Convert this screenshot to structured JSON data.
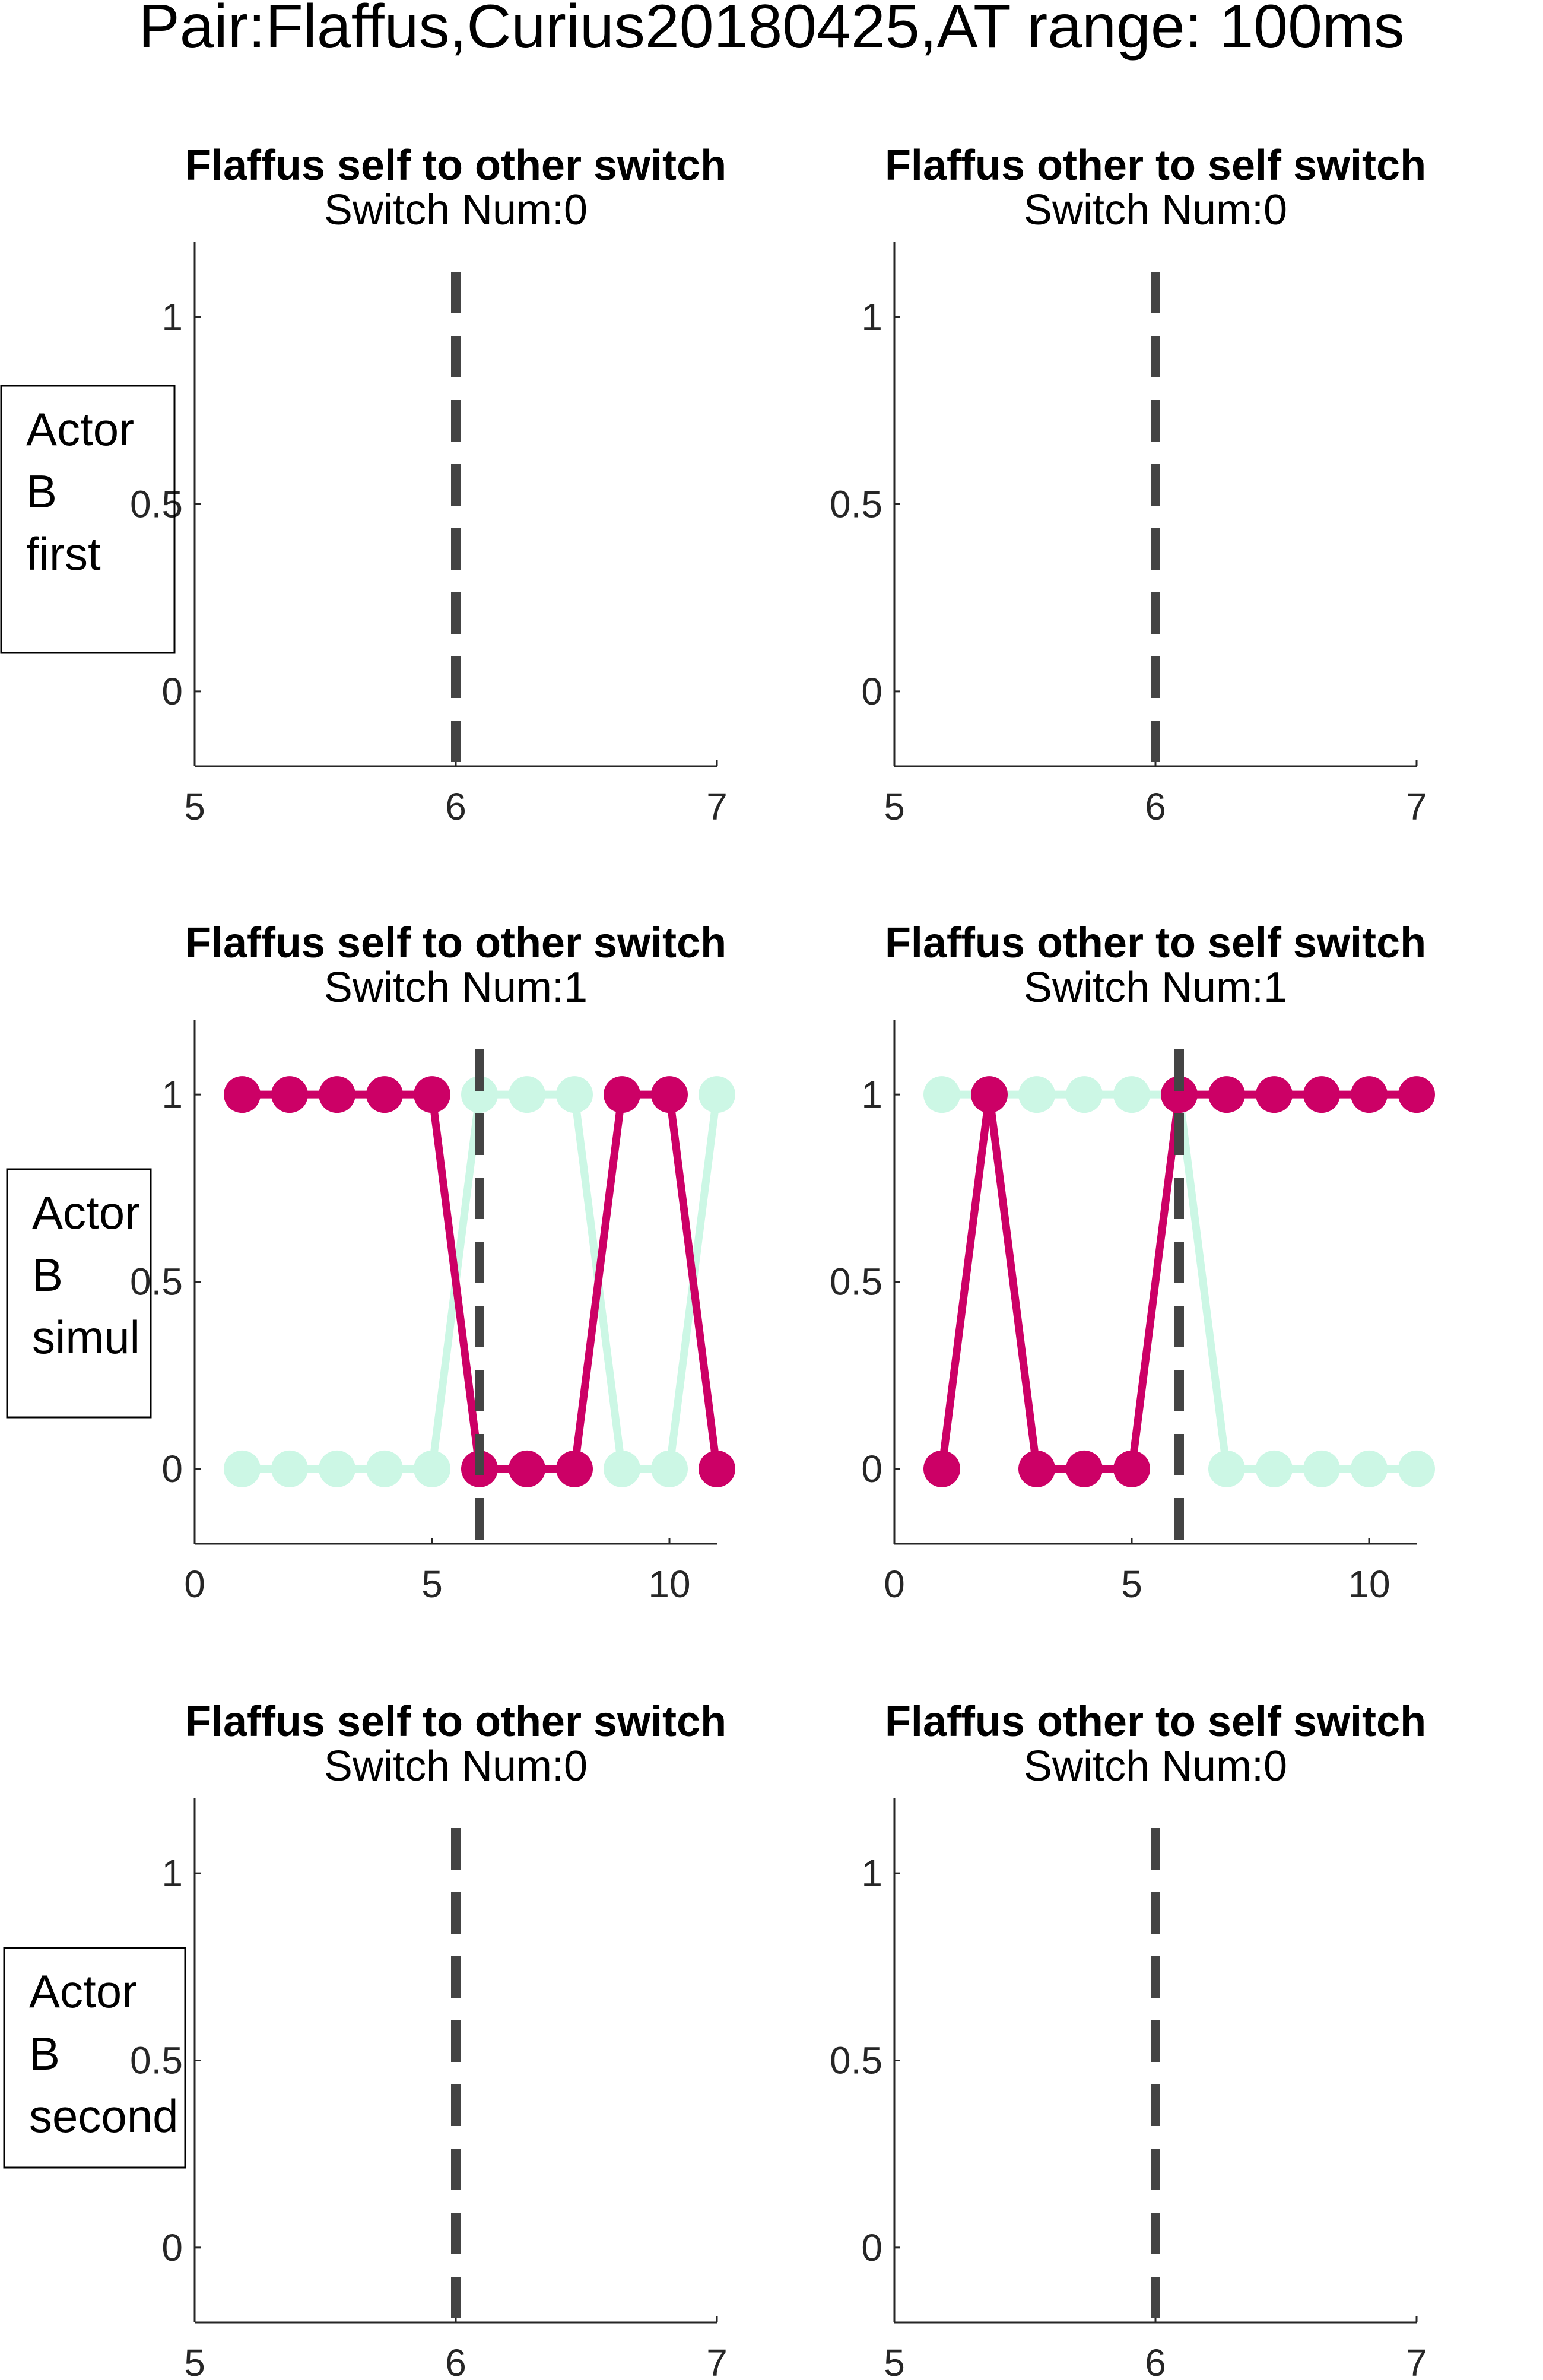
{
  "title": "Pair:Flaffus,Curius20180425,AT range: 100ms",
  "colors": {
    "magenta": "#cc0066",
    "mint": "#ccf7e5",
    "dashed_line": "#444444",
    "axis": "#262626"
  },
  "row_labels": [
    [
      "Actor",
      "B",
      "first"
    ],
    [
      "Actor",
      "B",
      "simul"
    ],
    [
      "Actor",
      "B",
      "second"
    ]
  ],
  "chart_data": [
    {
      "type": "line",
      "title": "Flaffus self to other switch",
      "subtitle": "Switch Num:0",
      "xlim": [
        5,
        7
      ],
      "ylim": [
        -0.2,
        1.2
      ],
      "xticks": [
        "5",
        "6",
        "7"
      ],
      "yticks": [
        "0",
        "0.5",
        "1"
      ],
      "vline": 6,
      "series": []
    },
    {
      "type": "line",
      "title": "Flaffus other to self switch",
      "subtitle": "Switch Num:0",
      "xlim": [
        5,
        7
      ],
      "ylim": [
        -0.2,
        1.2
      ],
      "xticks": [
        "5",
        "6",
        "7"
      ],
      "yticks": [
        "0",
        "0.5",
        "1"
      ],
      "vline": 6,
      "series": []
    },
    {
      "type": "line",
      "title": "Flaffus self to other switch",
      "subtitle": "Switch Num:1",
      "xlim": [
        0,
        11
      ],
      "ylim": [
        -0.2,
        1.2
      ],
      "xticks": [
        "0",
        "5",
        "10"
      ],
      "yticks": [
        "0",
        "0.5",
        "1"
      ],
      "vline": 6,
      "series": [
        {
          "color": "mint",
          "x": [
            1,
            2,
            3,
            4,
            5,
            6,
            7,
            8,
            9,
            10,
            11
          ],
          "y": [
            0,
            0,
            0,
            0,
            0,
            1,
            1,
            1,
            0,
            0,
            1
          ]
        },
        {
          "color": "magenta",
          "x": [
            1,
            2,
            3,
            4,
            5,
            6,
            7,
            8,
            9,
            10,
            11
          ],
          "y": [
            1,
            1,
            1,
            1,
            1,
            0,
            0,
            0,
            1,
            1,
            0
          ]
        }
      ]
    },
    {
      "type": "line",
      "title": "Flaffus other to self switch",
      "subtitle": "Switch Num:1",
      "xlim": [
        0,
        11
      ],
      "ylim": [
        -0.2,
        1.2
      ],
      "xticks": [
        "0",
        "5",
        "10"
      ],
      "yticks": [
        "0",
        "0.5",
        "1"
      ],
      "vline": 6,
      "series": [
        {
          "color": "mint",
          "x": [
            1,
            2,
            3,
            4,
            5,
            6,
            7,
            8,
            9,
            10,
            11
          ],
          "y": [
            1,
            1,
            1,
            1,
            1,
            1,
            0,
            0,
            0,
            0,
            0
          ]
        },
        {
          "color": "magenta",
          "x": [
            1,
            2,
            3,
            4,
            5,
            6,
            7,
            8,
            9,
            10,
            11
          ],
          "y": [
            0,
            1,
            0,
            0,
            0,
            1,
            1,
            1,
            1,
            1,
            1
          ]
        }
      ]
    },
    {
      "type": "line",
      "title": "Flaffus self to other switch",
      "subtitle": "Switch Num:0",
      "xlim": [
        5,
        7
      ],
      "ylim": [
        -0.2,
        1.2
      ],
      "xticks": [
        "5",
        "6",
        "7"
      ],
      "yticks": [
        "0",
        "0.5",
        "1"
      ],
      "vline": 6,
      "series": []
    },
    {
      "type": "line",
      "title": "Flaffus other to self switch",
      "subtitle": "Switch Num:0",
      "xlim": [
        5,
        7
      ],
      "ylim": [
        -0.2,
        1.2
      ],
      "xticks": [
        "5",
        "6",
        "7"
      ],
      "yticks": [
        "0",
        "0.5",
        "1"
      ],
      "vline": 6,
      "series": []
    }
  ]
}
